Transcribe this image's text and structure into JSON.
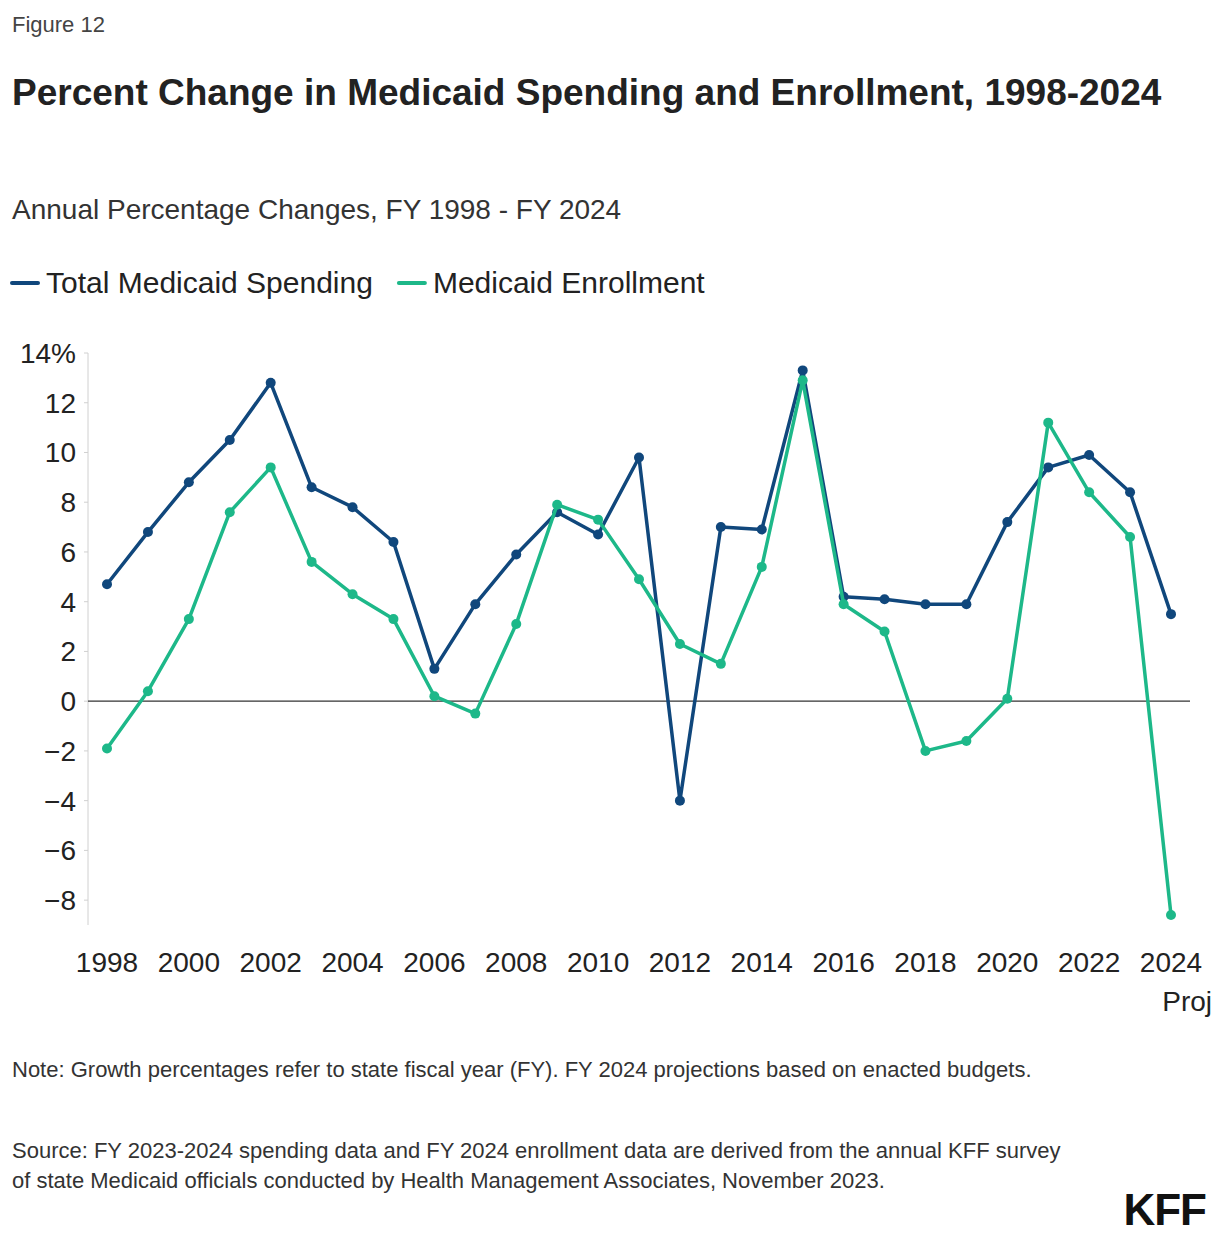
{
  "chart_data": {
    "type": "line",
    "figure_label": "Figure 12",
    "title": "Percent Change in Medicaid Spending and Enrollment, 1998-2024",
    "subtitle": "Annual Percentage Changes, FY 1998 - FY 2024",
    "categories": [
      "1998",
      null,
      "2000",
      null,
      "2002",
      null,
      "2004",
      null,
      "2006",
      null,
      "2008",
      null,
      "2010",
      null,
      "2012",
      null,
      "2014",
      null,
      "2016",
      null,
      "2018",
      null,
      "2020",
      null,
      "2022",
      null,
      "2024"
    ],
    "annotations": [
      "Proj"
    ],
    "series": [
      {
        "name": "Total Medicaid Spending",
        "color": "#10477c",
        "marker": "circle",
        "values": [
          4.7,
          6.8,
          8.8,
          10.5,
          12.8,
          8.6,
          7.8,
          6.4,
          1.3,
          3.9,
          5.9,
          7.6,
          6.7,
          9.8,
          -4.0,
          7.0,
          6.9,
          13.3,
          4.2,
          4.1,
          3.9,
          3.9,
          7.2,
          9.4,
          9.9,
          8.4,
          3.5
        ]
      },
      {
        "name": "Medicaid Enrollment",
        "color": "#1db889",
        "marker": "circle",
        "values": [
          -1.9,
          0.4,
          3.3,
          7.6,
          9.4,
          5.6,
          4.3,
          3.3,
          0.2,
          -0.5,
          3.1,
          7.9,
          7.3,
          4.9,
          2.3,
          1.5,
          5.4,
          12.9,
          3.9,
          2.8,
          -2.0,
          -1.6,
          0.1,
          11.2,
          8.4,
          6.6,
          -8.6
        ]
      }
    ],
    "ylim": [
      -9,
      14
    ],
    "yticks": [
      {
        "value": -8,
        "label": "−8"
      },
      {
        "value": -6,
        "label": "−6"
      },
      {
        "value": -4,
        "label": "−4"
      },
      {
        "value": -2,
        "label": "−2"
      },
      0,
      2,
      4,
      6,
      8,
      10,
      12,
      {
        "value": 14,
        "label": "14%"
      }
    ],
    "grid": false,
    "legend": "top-left",
    "note": "Note: Growth percentages refer to state fiscal year (FY). FY 2024 projections based on enacted budgets.",
    "source": "Source:  FY 2023-2024 spending data and FY 2024 enrollment data are derived from the annual KFF survey of state Medicaid officials conducted by Health Management Associates, November 2023.",
    "logo": "KFF"
  }
}
